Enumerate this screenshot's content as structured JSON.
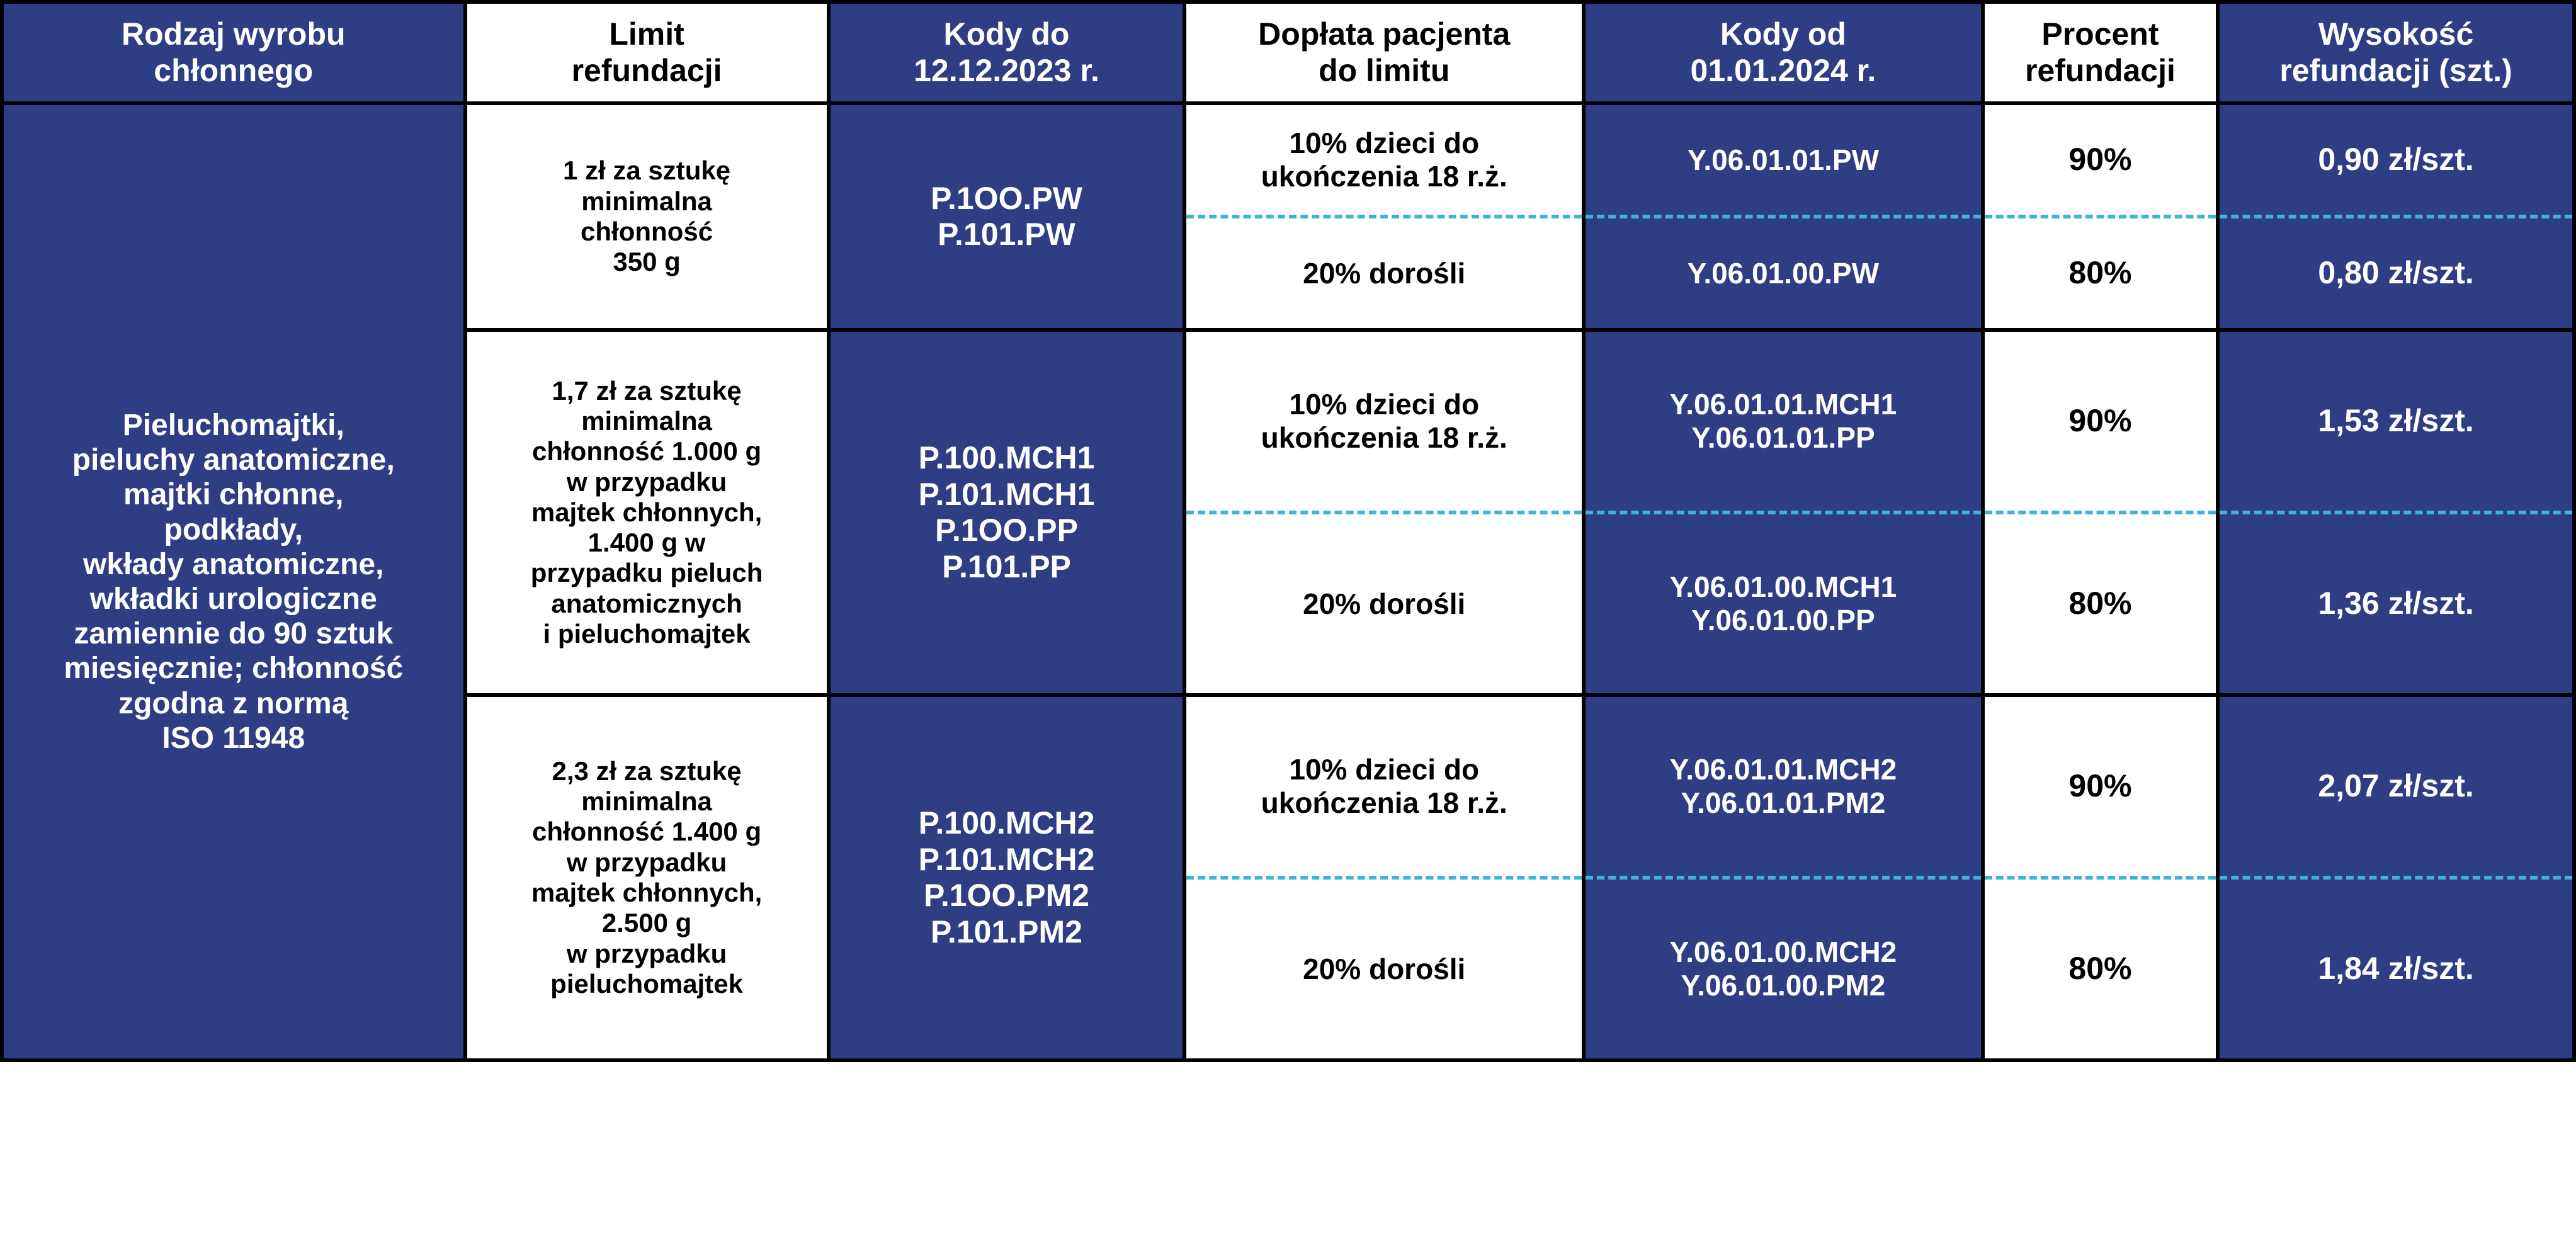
{
  "colors": {
    "blue_bg": "#2e3e85",
    "white_bg": "#ffffff",
    "text_on_blue": "#ffffff",
    "text_on_white": "#000000",
    "border": "#000000",
    "dash": "#3fb3d9"
  },
  "headers": {
    "c1": "Rodzaj wyrobu\nchłonnego",
    "c2": "Limit\nrefundacji",
    "c3": "Kody do\n12.12.2023 r.",
    "c4": "Dopłata pacjenta\ndo limitu",
    "c5": "Kody od\n01.01.2024 r.",
    "c6": "Procent\nrefundacji",
    "c7": "Wysokość\nrefundacji (szt.)"
  },
  "row_label": "Pieluchomajtki,\npieluchy anatomiczne,\nmajtki chłonne,\npodkłady,\nwkłady anatomiczne,\nwkładki urologiczne\nzamiennie do 90 sztuk\nmiesięcznie; chłonność\nzgodna z normą\nISO 11948",
  "groups": [
    {
      "limit": "1 zł za sztukę\nminimalna\nchłonność\n350 g",
      "codes_old": "P.1OO.PW\nP.101.PW",
      "top": {
        "doplata": "10% dzieci do\nukończenia 18 r.ż.",
        "codes_new": "Y.06.01.01.PW",
        "pct": "90%",
        "amt": "0,90 zł/szt."
      },
      "bot": {
        "doplata": "20% dorośli",
        "codes_new": "Y.06.01.00.PW",
        "pct": "80%",
        "amt": "0,80 zł/szt."
      }
    },
    {
      "limit": "1,7 zł za sztukę\nminimalna\nchłonność 1.000 g\nw przypadku\nmajtek chłonnych,\n1.400 g w\nprzypadku pieluch\nanatomicznych\ni pieluchomajtek",
      "codes_old": "P.100.MCH1\nP.101.MCH1\nP.1OO.PP\nP.101.PP",
      "top": {
        "doplata": "10% dzieci do\nukończenia 18 r.ż.",
        "codes_new": "Y.06.01.01.MCH1\nY.06.01.01.PP",
        "pct": "90%",
        "amt": "1,53 zł/szt."
      },
      "bot": {
        "doplata": "20% dorośli",
        "codes_new": "Y.06.01.00.MCH1\nY.06.01.00.PP",
        "pct": "80%",
        "amt": "1,36 zł/szt."
      }
    },
    {
      "limit": "2,3 zł za sztukę\nminimalna\nchłonność 1.400 g\nw przypadku\nmajtek chłonnych,\n2.500 g\nw przypadku\npieluchomajtek",
      "codes_old": "P.100.MCH2\nP.101.MCH2\nP.1OO.PM2\nP.101.PM2",
      "top": {
        "doplata": "10% dzieci do\nukończenia 18 r.ż.",
        "codes_new": "Y.06.01.01.MCH2\nY.06.01.01.PM2",
        "pct": "90%",
        "amt": "2,07 zł/szt."
      },
      "bot": {
        "doplata": "20% dorośli",
        "codes_new": "Y.06.01.00.MCH2\nY.06.01.00.PM2",
        "pct": "80%",
        "amt": "1,84 zł/szt."
      }
    }
  ]
}
